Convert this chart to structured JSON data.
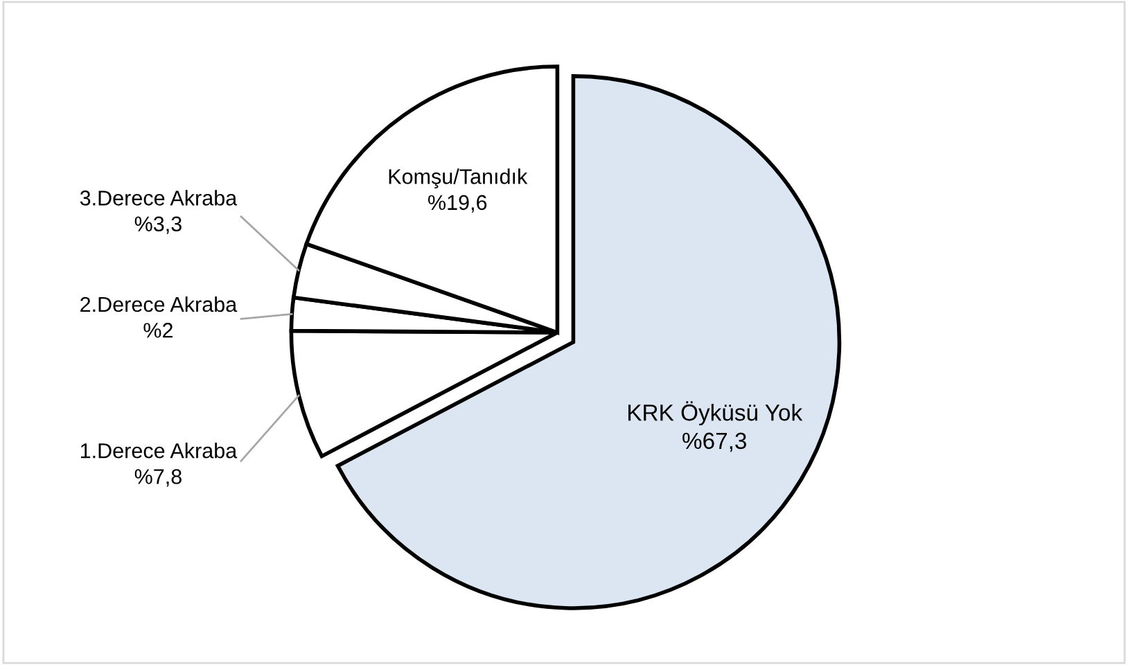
{
  "chart_data": {
    "type": "pie",
    "categories": [
      "KRK Öyküsü Yok",
      "1.Derece Akraba",
      "2.Derece Akraba",
      "3.Derece Akraba",
      "Komşu/Tanıdık"
    ],
    "values": [
      67.3,
      7.8,
      2,
      3.3,
      19.6
    ],
    "value_labels": [
      "%67,3",
      "%7,8",
      "%2",
      "%3,3",
      "%19,6"
    ],
    "colors": [
      "#dce6f2",
      "#ffffff",
      "#ffffff",
      "#ffffff",
      "#ffffff"
    ],
    "legend": false
  }
}
